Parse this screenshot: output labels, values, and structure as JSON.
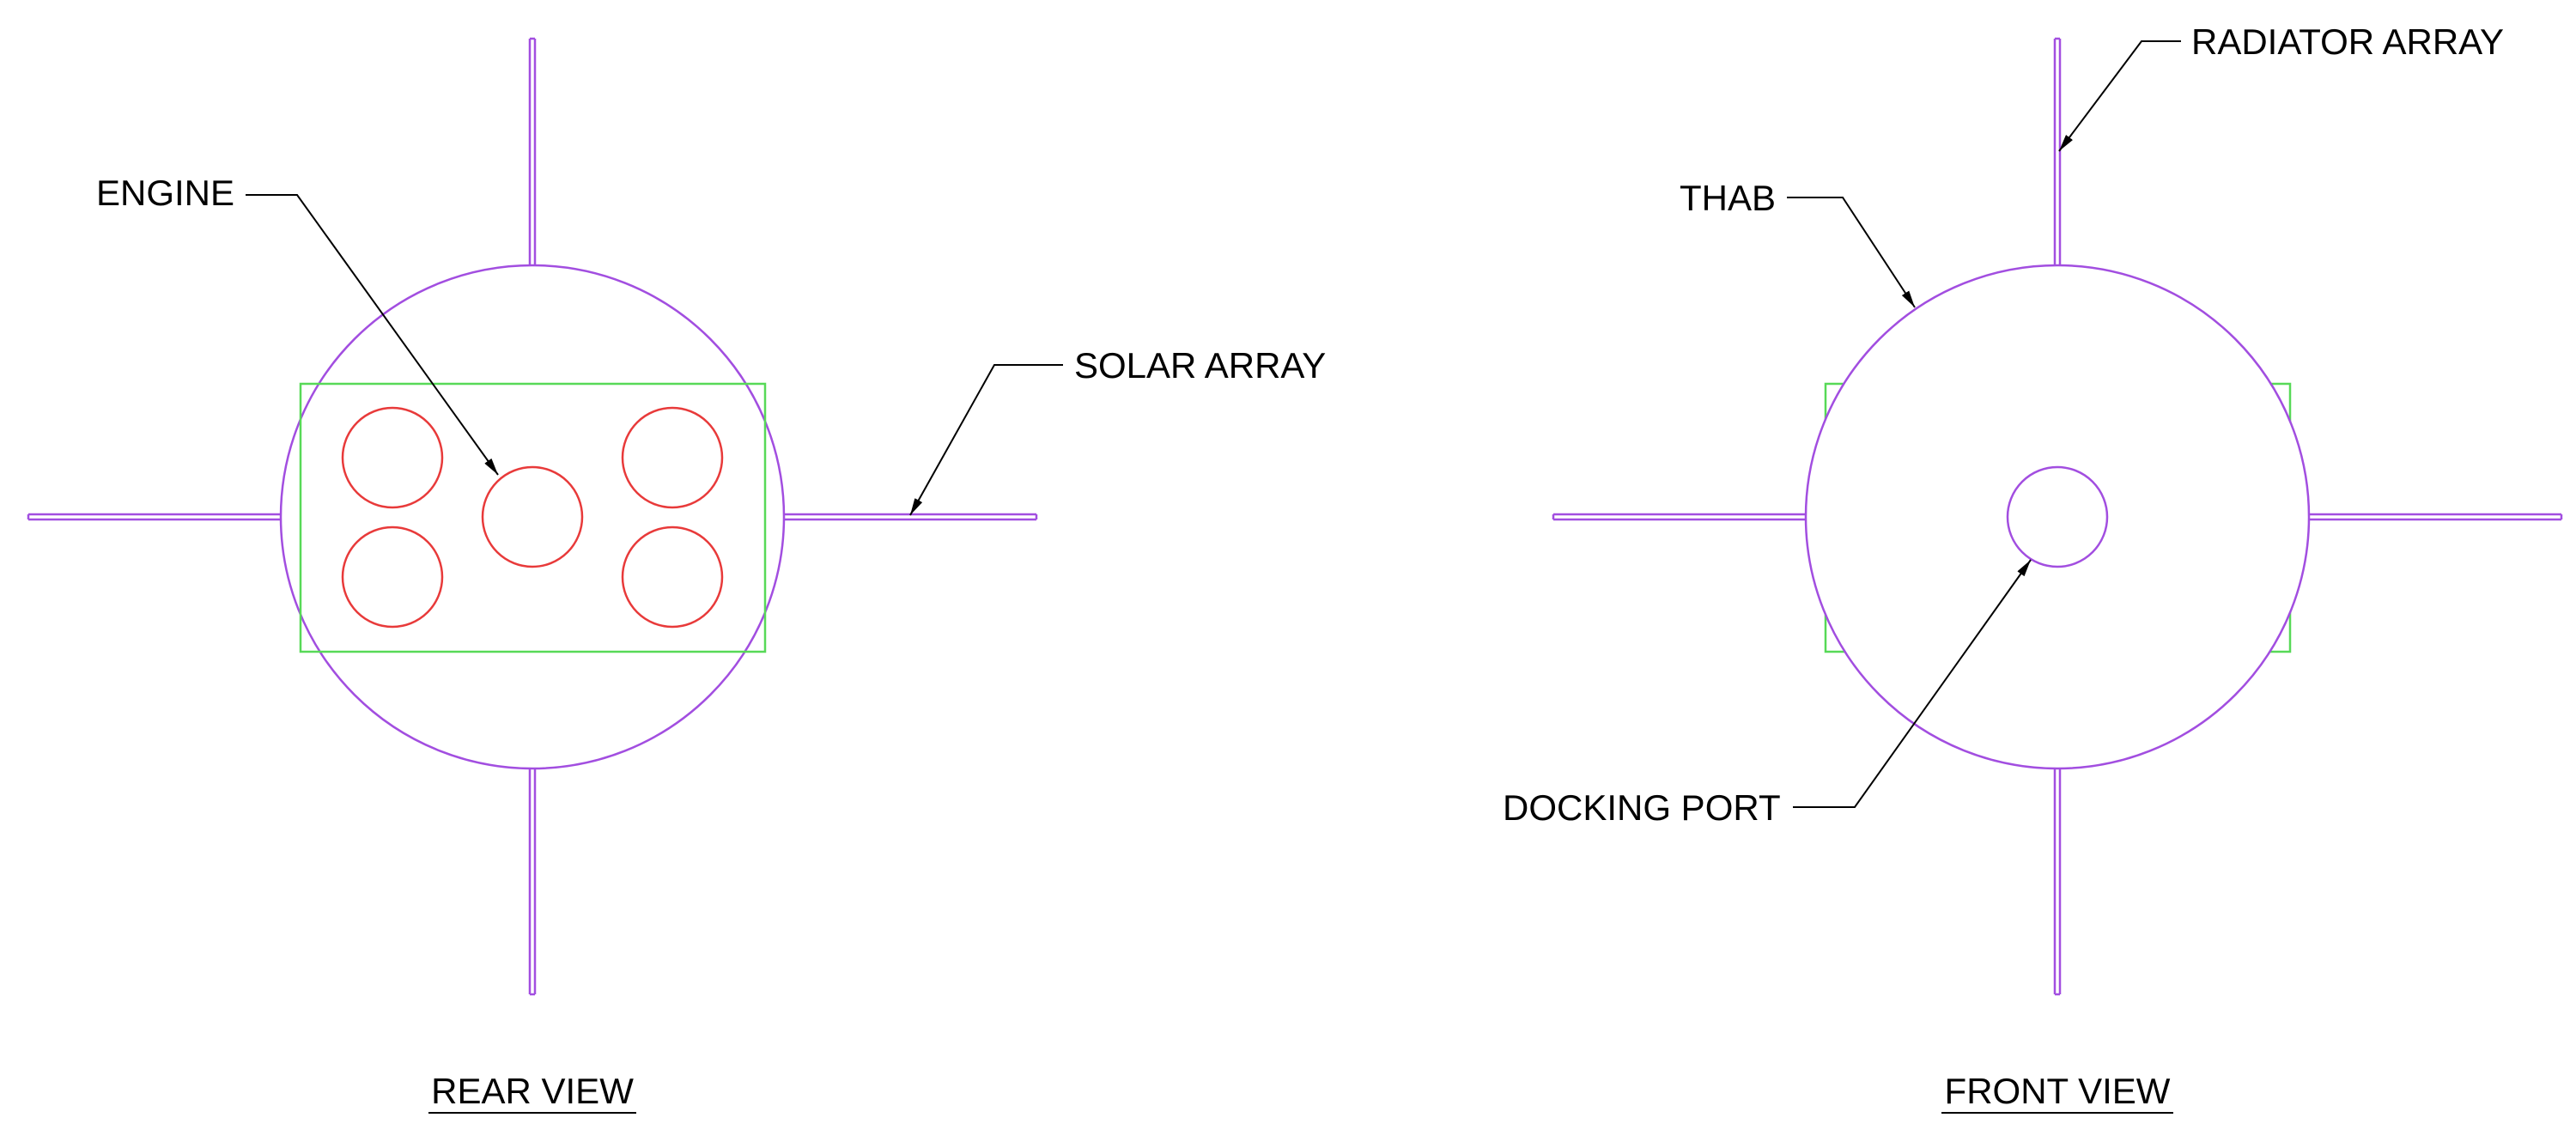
{
  "colors": {
    "hull": "#a24ee0",
    "panel": "#57d957",
    "engine": "#e83a3a",
    "leader": "#000000"
  },
  "labels": {
    "engine": "ENGINE",
    "solar_array": "SOLAR ARRAY",
    "radiator_array": "RADIATOR ARRAY",
    "thab": "THAB",
    "docking_port": "DOCKING PORT"
  },
  "views": {
    "rear": "REAR VIEW",
    "front": "FRONT VIEW"
  }
}
